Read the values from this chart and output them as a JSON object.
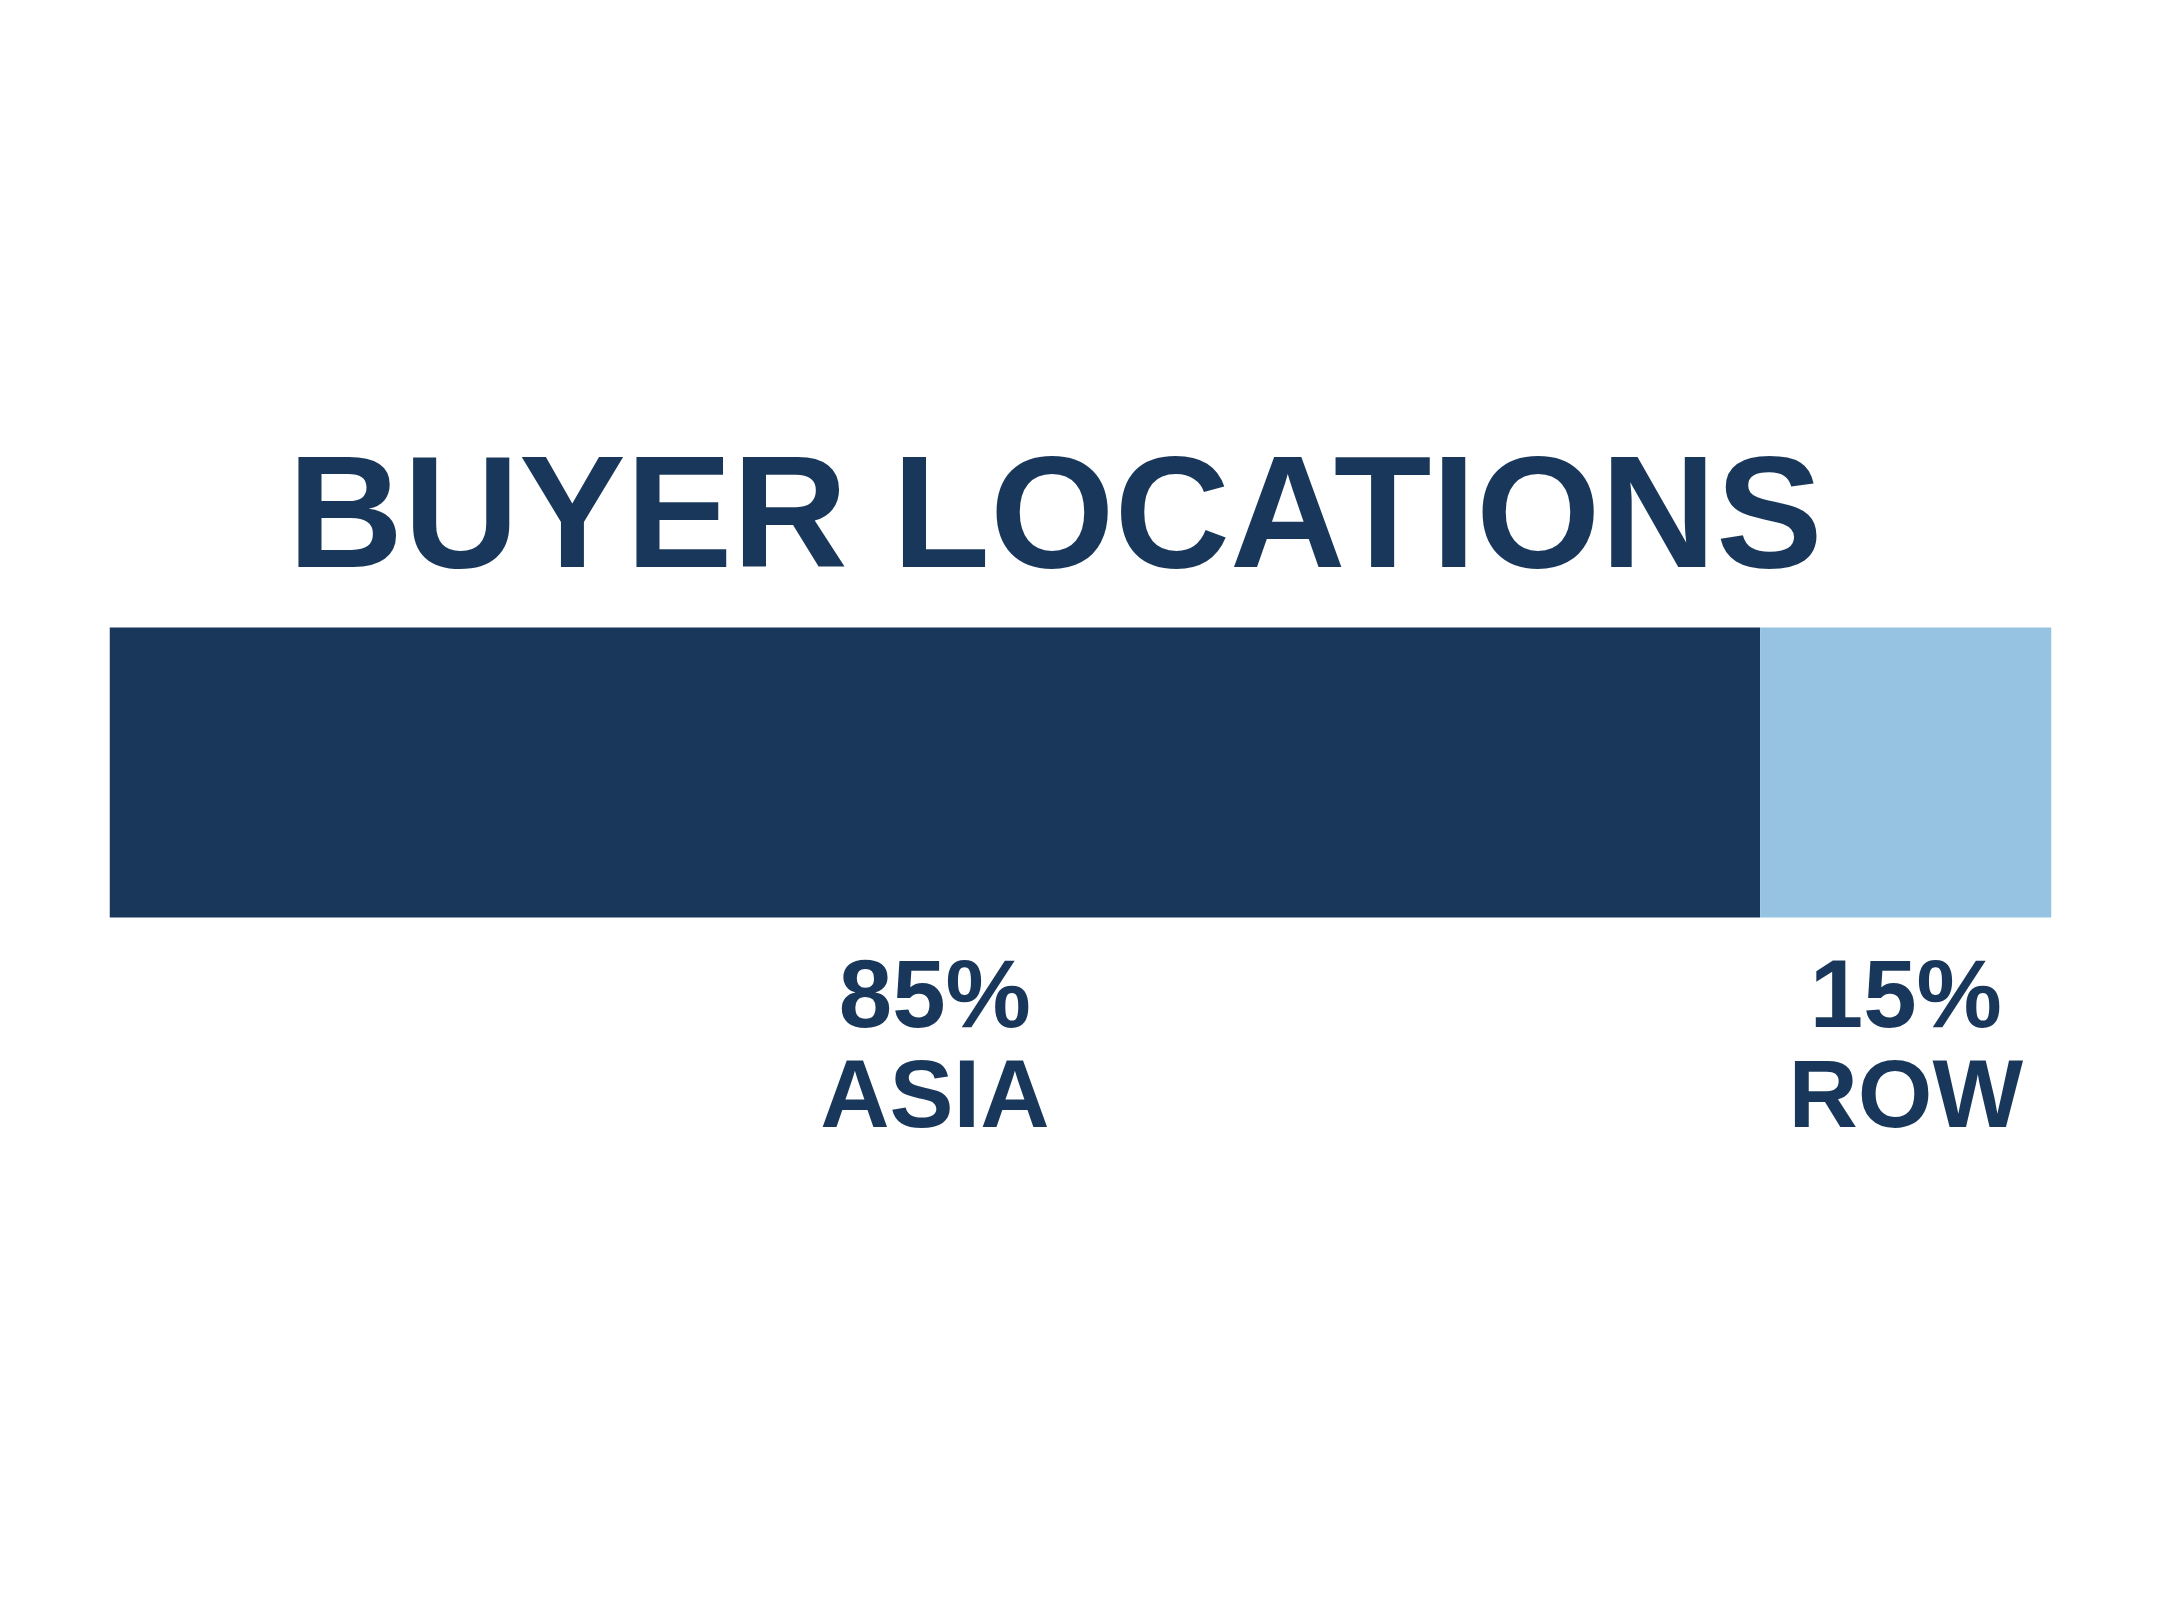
{
  "chart_data": {
    "type": "bar",
    "title": "BUYER LOCATIONS",
    "orientation": "horizontal",
    "stacked": true,
    "categories": [
      null
    ],
    "series": [
      {
        "name": "ASIA",
        "color": "#18375b",
        "values": [
          85
        ],
        "value_labels": [
          "85%"
        ]
      },
      {
        "name": "ROW",
        "color": "#96c3e1",
        "values": [
          15
        ],
        "value_labels": [
          "15%"
        ]
      }
    ],
    "xlim": [
      0,
      100
    ],
    "tick_labels": false,
    "grid": false,
    "legend": false
  }
}
